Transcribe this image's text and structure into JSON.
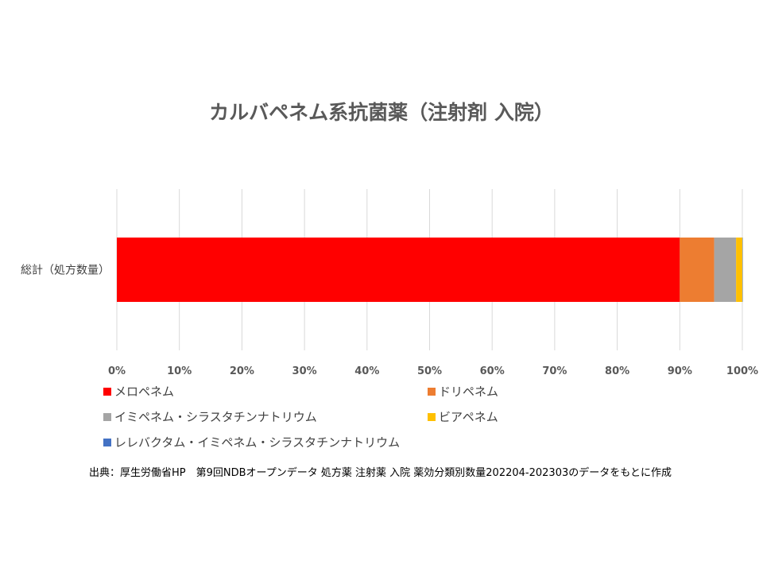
{
  "chart_data": {
    "type": "bar",
    "orientation": "horizontal",
    "stacked": "percent",
    "title": "カルバペネム系抗菌薬（注射剤 入院）",
    "categories": [
      "総計（処方数量）"
    ],
    "series": [
      {
        "name": "メロペネム",
        "values": [
          90.0
        ],
        "color": "#ff0000"
      },
      {
        "name": "ドリペネム",
        "values": [
          5.5
        ],
        "color": "#ed7d31"
      },
      {
        "name": "イミペネム・シラスタチンナトリウム",
        "values": [
          3.5
        ],
        "color": "#a5a5a5"
      },
      {
        "name": "ビアペネム",
        "values": [
          1.0
        ],
        "color": "#ffc000"
      },
      {
        "name": "レレバクタム・イミペネム・シラスタチンナトリウム",
        "values": [
          0.05
        ],
        "color": "#4472c4"
      }
    ],
    "xlim": [
      0,
      100
    ],
    "x_ticks": [
      "0%",
      "10%",
      "20%",
      "30%",
      "40%",
      "50%",
      "60%",
      "70%",
      "80%",
      "90%",
      "100%"
    ],
    "grid": true,
    "legend_position": "bottom"
  },
  "source_note": "出典：厚生労働省HP　第9回NDBオープンデータ 処方薬 注射薬 入院 薬効分類別数量202204-202303のデータをもとに作成"
}
